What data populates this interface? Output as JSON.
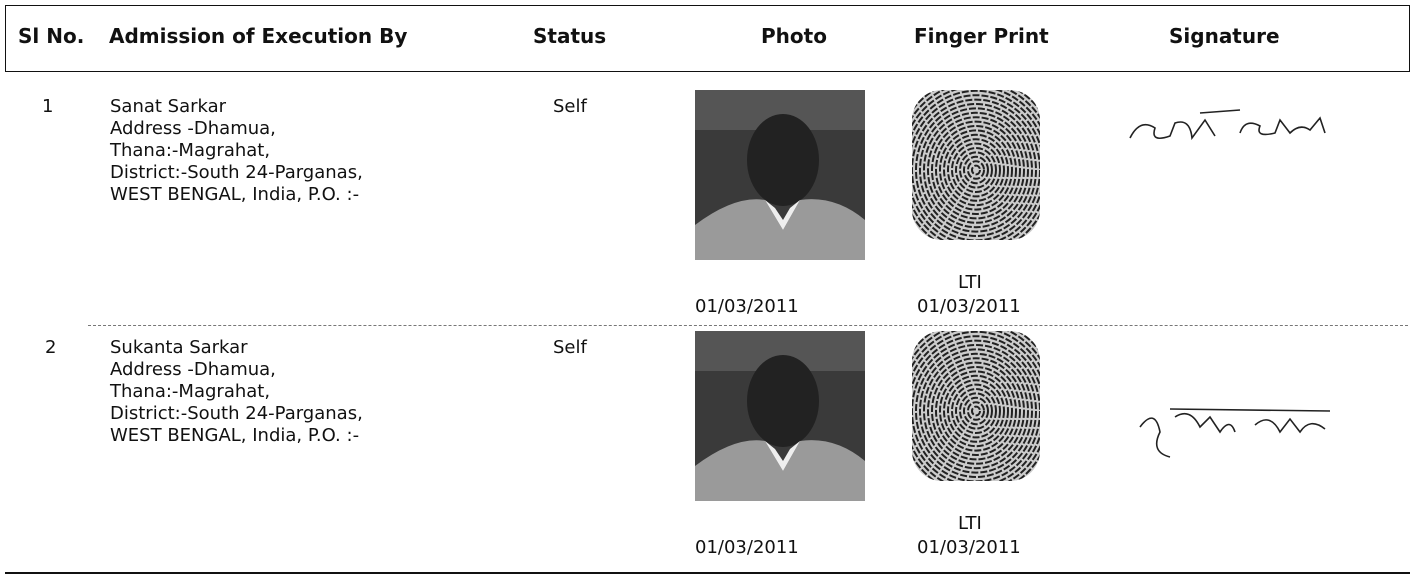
{
  "header": {
    "columns": [
      "Sl No.",
      "Admission of Execution By",
      "Status",
      "Photo",
      "Finger Print",
      "Signature"
    ]
  },
  "rows": [
    {
      "sl_no": 1,
      "name": "Sanat Sarkar",
      "address_lines": [
        "Address -Dhamua,",
        "Thana:-Magrahat,",
        "District:-South 24-Parganas,",
        "WEST BENGAL, India,  P.O. :-"
      ],
      "status": "Self",
      "finger_label": "LTI",
      "photo_date": "01/03/2011",
      "finger_date": "01/03/2011"
    },
    {
      "sl_no": 2,
      "name": "Sukanta Sarkar",
      "address_lines": [
        "Address -Dhamua,",
        "Thana:-Magrahat,",
        "District:-South 24-Parganas,",
        "WEST BENGAL, India,  P.O. :-"
      ],
      "status": "Self",
      "finger_label": "LTI",
      "photo_date": "01/03/2011",
      "finger_date": "01/03/2011"
    }
  ]
}
